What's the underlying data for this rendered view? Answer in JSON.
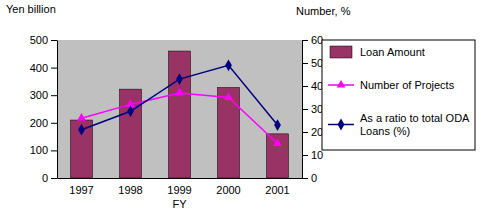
{
  "chart_data": {
    "type": "bar",
    "y_label": "Yen billion",
    "y2_label": "Number, %",
    "x_label": "FY",
    "categories": [
      "1997",
      "1998",
      "1999",
      "2000",
      "2001"
    ],
    "series": [
      {
        "name": "Loan Amount",
        "type": "bar",
        "color": "#993366",
        "values": [
          210,
          322,
          460,
          328,
          160
        ]
      },
      {
        "name": "Number of Projects",
        "type": "line",
        "axis": "y2",
        "color": "#ff00ff",
        "marker": "triangle",
        "values": [
          26,
          32,
          37,
          35,
          15
        ]
      },
      {
        "name": "As a ratio to total ODA Loans (%)",
        "type": "line",
        "axis": "y2",
        "color": "#000080",
        "marker": "diamond",
        "values": [
          21,
          29,
          43,
          49,
          23
        ]
      }
    ],
    "ylim": [
      0,
      500
    ],
    "yticks": [
      0,
      100,
      200,
      300,
      400,
      500
    ],
    "y2lim": [
      0,
      60
    ],
    "y2ticks": [
      0,
      10,
      20,
      30,
      40,
      50,
      60
    ],
    "grid": false,
    "legend": "right"
  }
}
